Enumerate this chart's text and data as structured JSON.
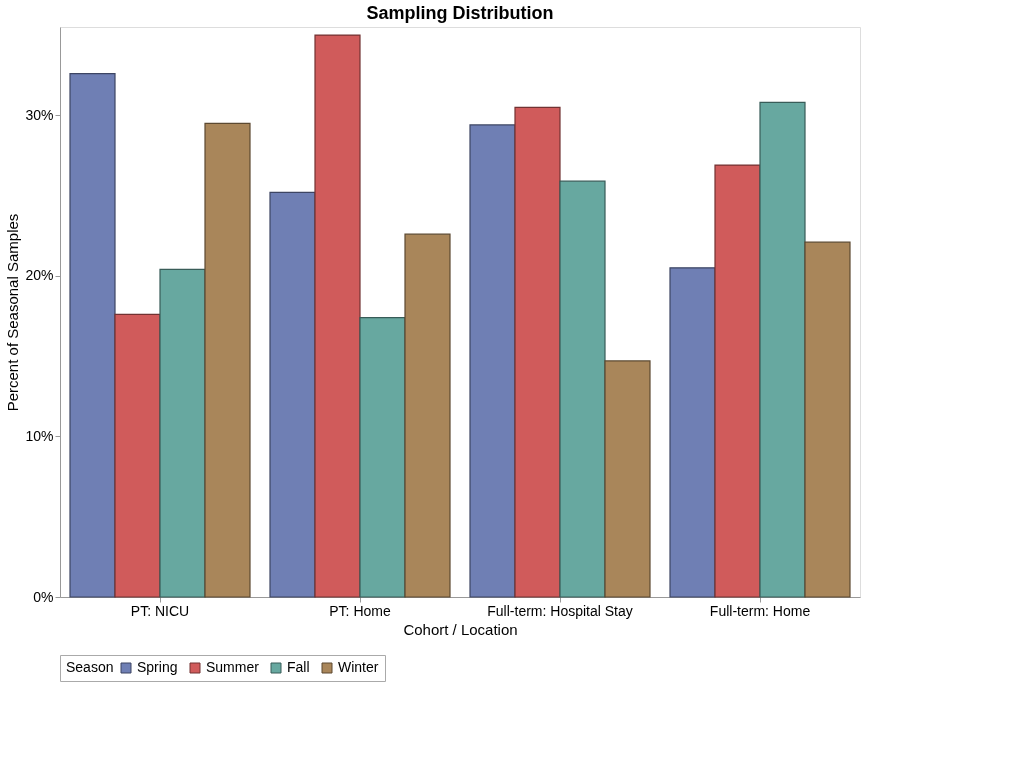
{
  "chart_data": {
    "type": "bar",
    "title": "Sampling Distribution",
    "xlabel": "Cohort / Location",
    "ylabel": "Percent of Seasonal Samples",
    "legend_title": "Season",
    "categories": [
      "PT: NICU",
      "PT: Home",
      "Full-term: Hospital Stay",
      "Full-term: Home"
    ],
    "series": [
      {
        "name": "Spring",
        "color": "#6f7fb4",
        "values": [
          32.6,
          25.2,
          29.4,
          20.5
        ]
      },
      {
        "name": "Summer",
        "color": "#d05b5b",
        "values": [
          17.6,
          35.0,
          30.5,
          26.9
        ]
      },
      {
        "name": "Fall",
        "color": "#67a8a0",
        "values": [
          20.4,
          17.4,
          25.9,
          30.8
        ]
      },
      {
        "name": "Winter",
        "color": "#a9865a",
        "values": [
          29.5,
          22.6,
          14.7,
          22.1
        ]
      }
    ],
    "ylim": [
      0,
      35.5
    ],
    "yticks": [
      {
        "value": 0,
        "label": "0%"
      },
      {
        "value": 10,
        "label": "10%"
      },
      {
        "value": 20,
        "label": "20%"
      },
      {
        "value": 30,
        "label": "30%"
      }
    ],
    "grid": false,
    "legend": "bottom"
  }
}
